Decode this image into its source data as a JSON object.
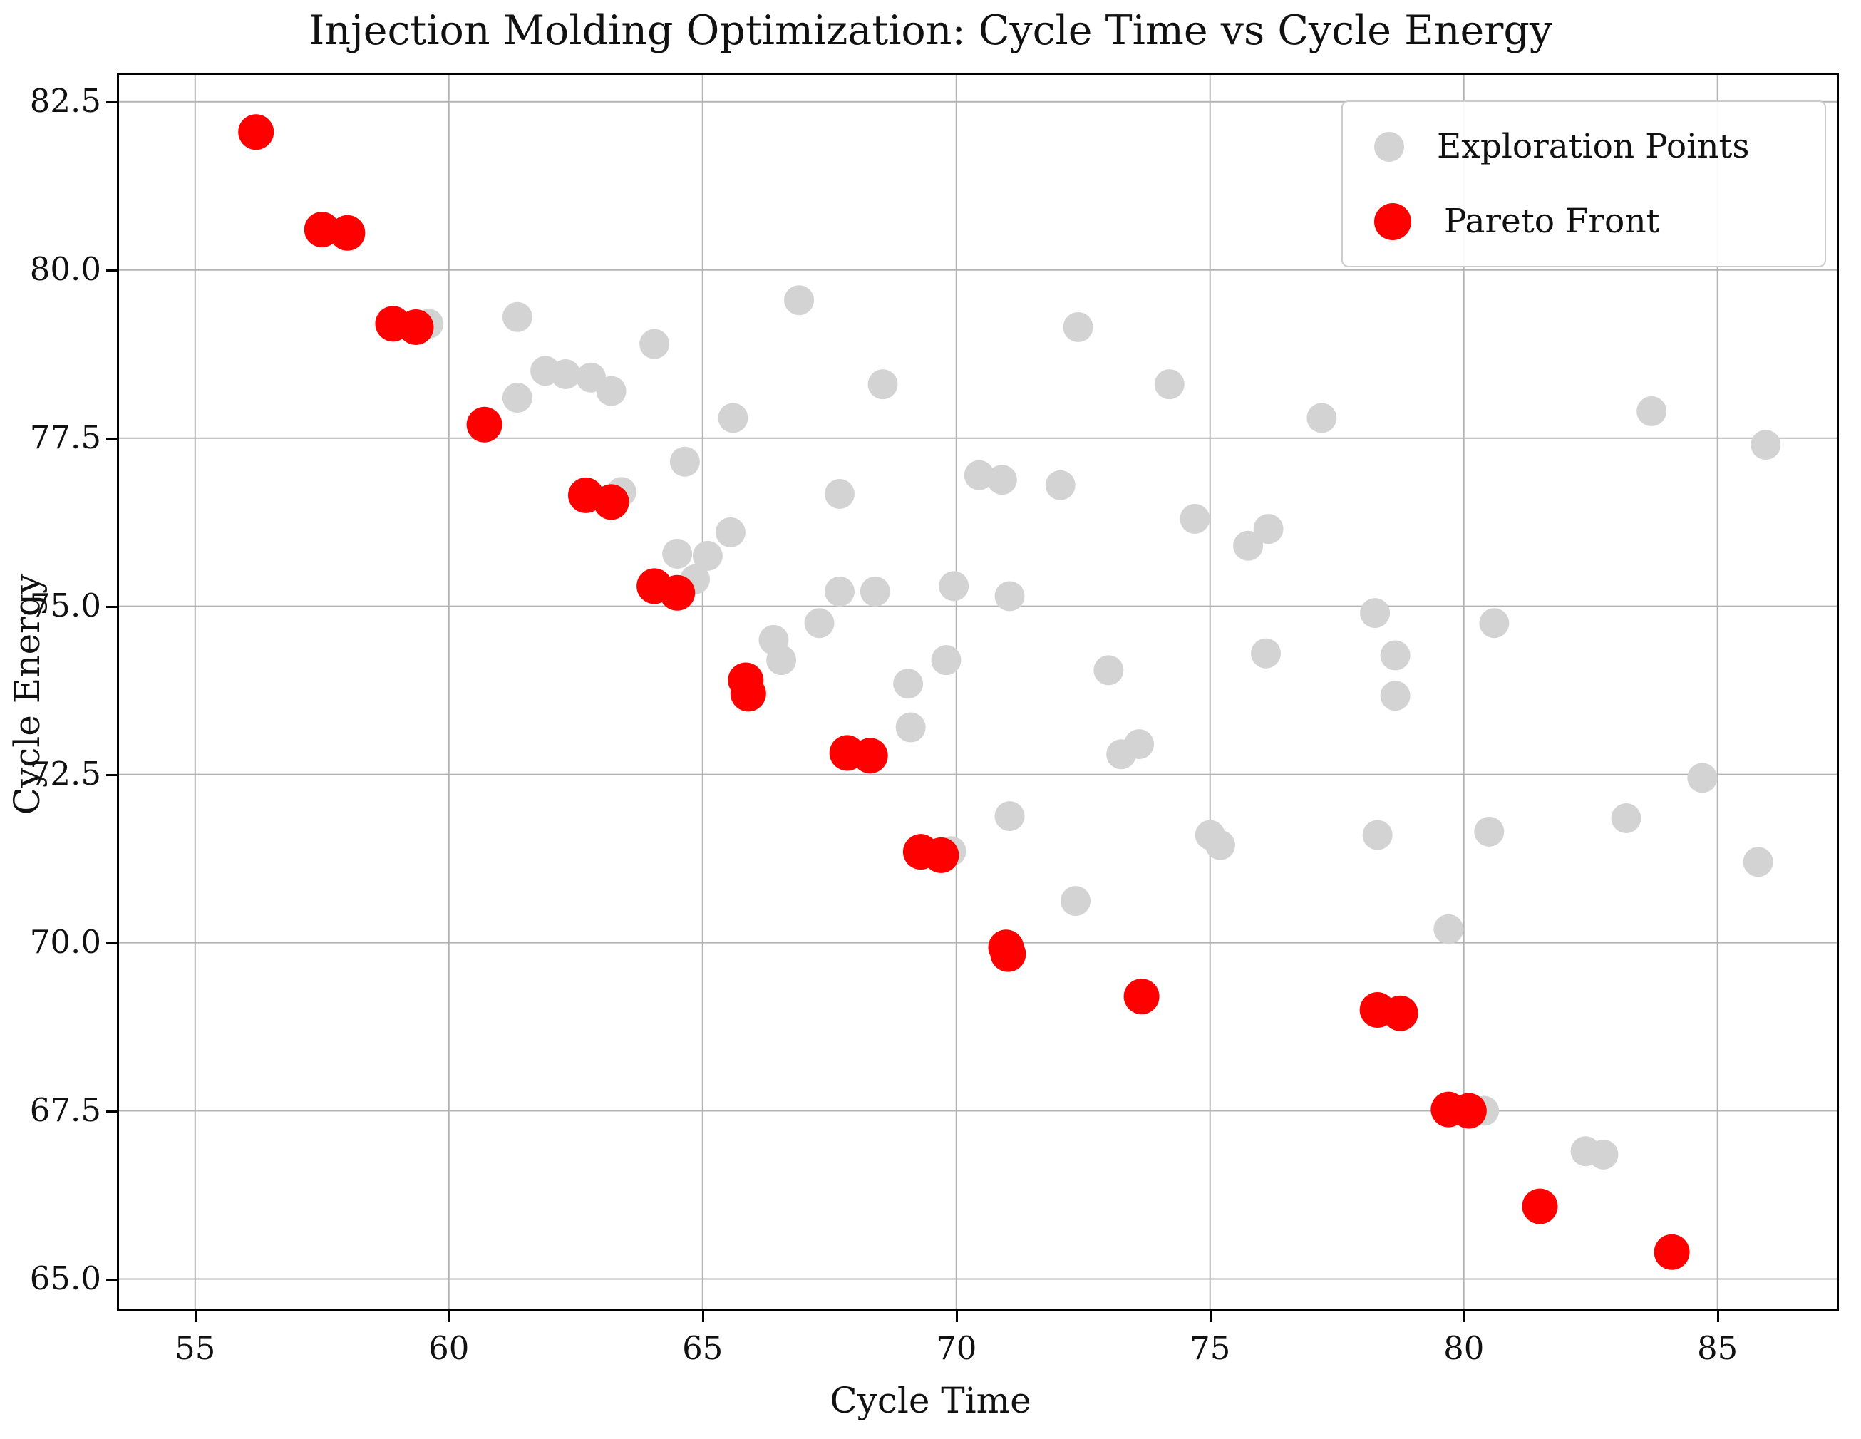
{
  "chart_data": {
    "type": "scatter",
    "title": "Injection Molding Optimization: Cycle Time vs Cycle Energy",
    "xlabel": "Cycle Time",
    "ylabel": "Cycle Energy",
    "xlim": [
      53.5,
      87.35
    ],
    "ylim": [
      64.55,
      82.9
    ],
    "xticks": [
      55,
      60,
      65,
      70,
      75,
      80,
      85
    ],
    "xtick_labels": [
      "55",
      "60",
      "65",
      "70",
      "75",
      "80",
      "85"
    ],
    "yticks": [
      65.0,
      67.5,
      70.0,
      72.5,
      75.0,
      77.5,
      80.0,
      82.5
    ],
    "ytick_labels": [
      "65.0",
      "67.5",
      "70.0",
      "72.5",
      "75.0",
      "77.5",
      "80.0",
      "82.5"
    ],
    "grid": true,
    "style": {
      "grid_color": "#b4b4b4",
      "spine_color": "#000000",
      "background": "#ffffff",
      "exploration_color": "#d3d3d3",
      "pareto_color": "#ff0000"
    },
    "legend": {
      "position": "upper right",
      "entries": [
        {
          "label": "Exploration Points",
          "color": "#d3d3d3",
          "size": "small"
        },
        {
          "label": "Pareto Front",
          "color": "#ff0000",
          "size": "large"
        }
      ]
    },
    "series": [
      {
        "name": "Exploration Points",
        "color": "#d3d3d3",
        "marker_radius_px": 21,
        "points": [
          [
            59.6,
            79.2
          ],
          [
            61.35,
            79.3
          ],
          [
            61.9,
            78.5
          ],
          [
            61.35,
            78.1
          ],
          [
            62.3,
            78.45
          ],
          [
            62.8,
            78.4
          ],
          [
            63.2,
            78.2
          ],
          [
            64.05,
            78.9
          ],
          [
            66.9,
            79.55
          ],
          [
            65.6,
            77.8
          ],
          [
            64.65,
            77.15
          ],
          [
            68.55,
            78.3
          ],
          [
            72.4,
            79.15
          ],
          [
            74.2,
            78.3
          ],
          [
            77.2,
            77.8
          ],
          [
            83.7,
            77.9
          ],
          [
            85.95,
            77.4
          ],
          [
            63.4,
            76.7
          ],
          [
            65.55,
            76.1
          ],
          [
            64.5,
            75.78
          ],
          [
            65.1,
            75.75
          ],
          [
            64.85,
            75.4
          ],
          [
            67.7,
            76.67
          ],
          [
            70.45,
            76.95
          ],
          [
            70.9,
            76.88
          ],
          [
            72.05,
            76.8
          ],
          [
            74.7,
            76.3
          ],
          [
            75.75,
            75.9
          ],
          [
            76.15,
            76.15
          ],
          [
            67.7,
            75.22
          ],
          [
            68.4,
            75.22
          ],
          [
            69.95,
            75.3
          ],
          [
            71.05,
            75.15
          ],
          [
            78.25,
            74.9
          ],
          [
            80.6,
            74.75
          ],
          [
            66.4,
            74.5
          ],
          [
            66.55,
            74.2
          ],
          [
            67.3,
            74.75
          ],
          [
            69.8,
            74.2
          ],
          [
            69.05,
            73.85
          ],
          [
            69.1,
            73.2
          ],
          [
            73.0,
            74.05
          ],
          [
            76.1,
            74.3
          ],
          [
            78.65,
            74.27
          ],
          [
            78.65,
            73.67
          ],
          [
            73.25,
            72.8
          ],
          [
            73.6,
            72.95
          ],
          [
            84.7,
            72.45
          ],
          [
            72.35,
            70.62
          ],
          [
            71.05,
            71.88
          ],
          [
            75.0,
            71.6
          ],
          [
            75.2,
            71.45
          ],
          [
            78.3,
            71.6
          ],
          [
            80.5,
            71.65
          ],
          [
            83.2,
            71.85
          ],
          [
            85.8,
            71.2
          ],
          [
            79.7,
            70.2
          ],
          [
            69.9,
            71.36
          ],
          [
            80.4,
            67.5
          ],
          [
            82.4,
            66.9
          ],
          [
            82.75,
            66.85
          ]
        ]
      },
      {
        "name": "Pareto Front",
        "color": "#ff0000",
        "marker_radius_px": 25,
        "points": [
          [
            56.2,
            82.05
          ],
          [
            57.5,
            80.6
          ],
          [
            58.0,
            80.55
          ],
          [
            58.9,
            79.2
          ],
          [
            59.35,
            79.15
          ],
          [
            60.7,
            77.7
          ],
          [
            62.7,
            76.65
          ],
          [
            63.2,
            76.55
          ],
          [
            64.05,
            75.3
          ],
          [
            64.5,
            75.2
          ],
          [
            65.85,
            73.9
          ],
          [
            65.9,
            73.7
          ],
          [
            67.85,
            72.82
          ],
          [
            68.3,
            72.78
          ],
          [
            69.3,
            71.35
          ],
          [
            69.7,
            71.3
          ],
          [
            70.98,
            69.93
          ],
          [
            71.02,
            69.83
          ],
          [
            73.65,
            69.2
          ],
          [
            78.3,
            69.0
          ],
          [
            78.75,
            68.95
          ],
          [
            79.7,
            67.52
          ],
          [
            80.1,
            67.5
          ],
          [
            81.5,
            66.08
          ],
          [
            84.1,
            65.4
          ]
        ]
      }
    ]
  }
}
